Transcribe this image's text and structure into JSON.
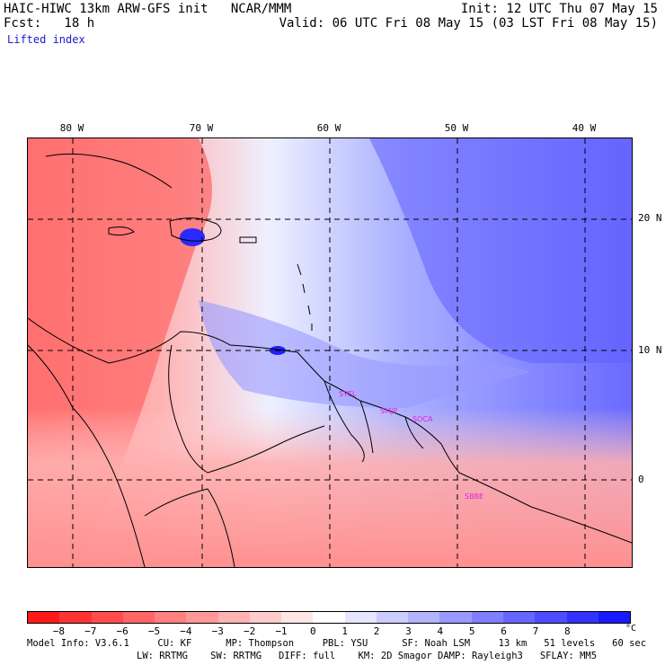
{
  "header": {
    "model_line": "HAIC-HIWC 13km ARW-GFS init   NCAR/MMM",
    "init_line": "Init: 12 UTC Thu 07 May 15",
    "fcst_line": "Fcst:   18 h",
    "valid_line": "Valid: 06 UTC Fri 08 May 15 (03 LST Fri 08 May 15)",
    "field": "Lifted index"
  },
  "map": {
    "lon_labels": [
      "80 W",
      "70 W",
      "60 W",
      "50 W",
      "40 W"
    ],
    "lat_labels": [
      "20 N",
      "10 N",
      "0"
    ],
    "stations": [
      "SYEL",
      "SMJP",
      "SOCA",
      "SBBE"
    ]
  },
  "colorbar": {
    "unit": "°C",
    "tick_labels": [
      "−8",
      "−7",
      "−6",
      "−5",
      "−4",
      "−3",
      "−2",
      "−1",
      "0",
      "1",
      "2",
      "3",
      "4",
      "5",
      "6",
      "7",
      "8"
    ],
    "colors": [
      "#ff1a1a",
      "#ff3333",
      "#ff4d4d",
      "#ff6666",
      "#ff8080",
      "#ff9999",
      "#ffb3b3",
      "#ffcccc",
      "#ffe6e6",
      "#ffffff",
      "#e6e6ff",
      "#ccccff",
      "#b3b3ff",
      "#9999ff",
      "#8080ff",
      "#6666ff",
      "#4d4dff",
      "#3333ff",
      "#1a1aff"
    ]
  },
  "footer": {
    "line1": "Model Info: V3.6.1     CU: KF      MP: Thompson     PBL: YSU      SF: Noah LSM     13 km   51 levels   60 sec",
    "line2": "LW: RRTMG    SW: RRTMG   DIFF: full    KM: 2D Smagor DAMP: Rayleigh3   SFLAY: MM5"
  }
}
